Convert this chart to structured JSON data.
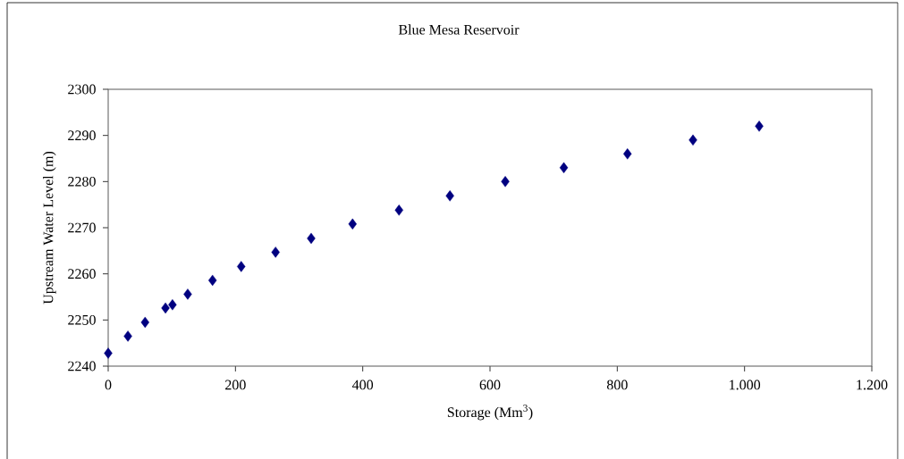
{
  "chart_data": {
    "type": "scatter",
    "title": "Blue Mesa Reservoir",
    "xlabel": "Storage (Mm$^{3}$)",
    "ylabel": "Upstream Water Level (m)",
    "x": [
      0,
      31,
      58,
      90,
      101,
      125,
      164,
      209,
      263,
      319,
      384,
      457,
      537,
      624,
      716,
      816,
      919,
      1023
    ],
    "values": [
      2242.8,
      2246.5,
      2249.5,
      2252.6,
      2253.3,
      2255.6,
      2258.6,
      2261.6,
      2264.7,
      2267.7,
      2270.8,
      2273.8,
      2276.9,
      2280,
      2283,
      2286,
      2289,
      2292
    ],
    "color": "#000080",
    "marker": "diamond",
    "grid": false,
    "xlim": [
      0,
      1200
    ],
    "ylim": [
      2240,
      2300
    ],
    "xticks": [
      0,
      200,
      400,
      600,
      800,
      {
        "value": 1000,
        "label": "1.000"
      },
      {
        "value": 1200,
        "label": "1.200"
      }
    ],
    "yticks": [
      2240,
      2250,
      2260,
      2270,
      2280,
      2290,
      2300
    ]
  }
}
